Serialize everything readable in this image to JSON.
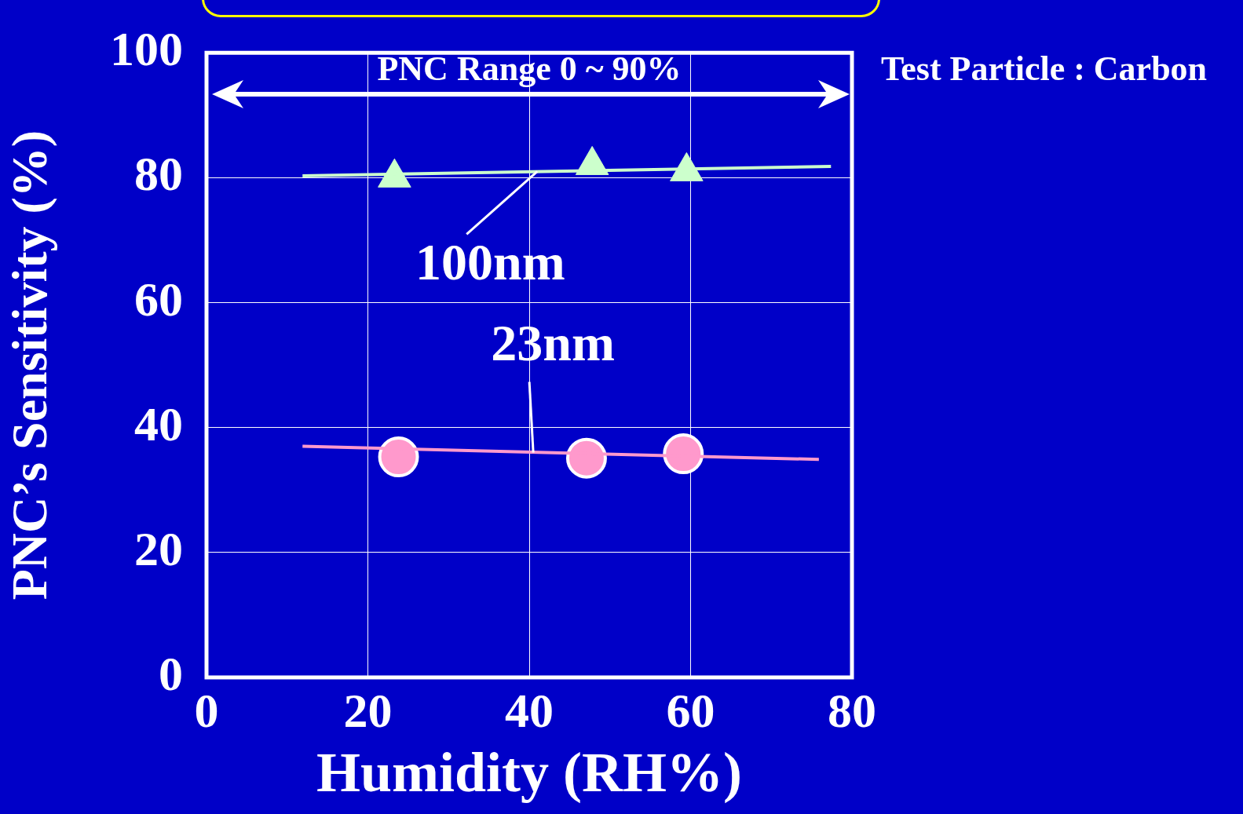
{
  "chart_data": {
    "type": "scatter",
    "xlabel": "Humidity (RH%)",
    "ylabel": "PNC’s Sensitivity (%)",
    "xlim": [
      0,
      80
    ],
    "xticks": [
      0,
      20,
      40,
      60,
      80
    ],
    "ylim": [
      0,
      100
    ],
    "yticks": [
      0,
      20,
      40,
      60,
      80,
      100
    ],
    "grid": true,
    "legend": false,
    "series": [
      {
        "type": "line",
        "color": "#ccffcc",
        "x": [
          11.9,
          77.4
        ],
        "values": [
          80.3,
          81.8
        ],
        "marker": "none"
      },
      {
        "type": "line",
        "color": "#ff99cc",
        "x": [
          11.9,
          75.9
        ],
        "values": [
          37.0,
          34.9
        ],
        "marker": "none"
      },
      {
        "color": "#ccffcc",
        "x": [
          23.3,
          47.8,
          59.5
        ],
        "values": [
          80,
          82,
          81
        ],
        "marker": "triangle"
      },
      {
        "color": "#ff99cc",
        "x": [
          23.8,
          47.1,
          59.1
        ],
        "values": [
          35.3,
          35.1,
          35.8
        ],
        "marker": "circle"
      }
    ],
    "annotations": [
      "PNC Range 0 ~ 90%",
      "Test Particle : Carbon",
      {
        "text": "100nm",
        "x": 41,
        "y": 81
      },
      {
        "text": "23nm",
        "x": 40.5,
        "y": 36
      }
    ]
  }
}
